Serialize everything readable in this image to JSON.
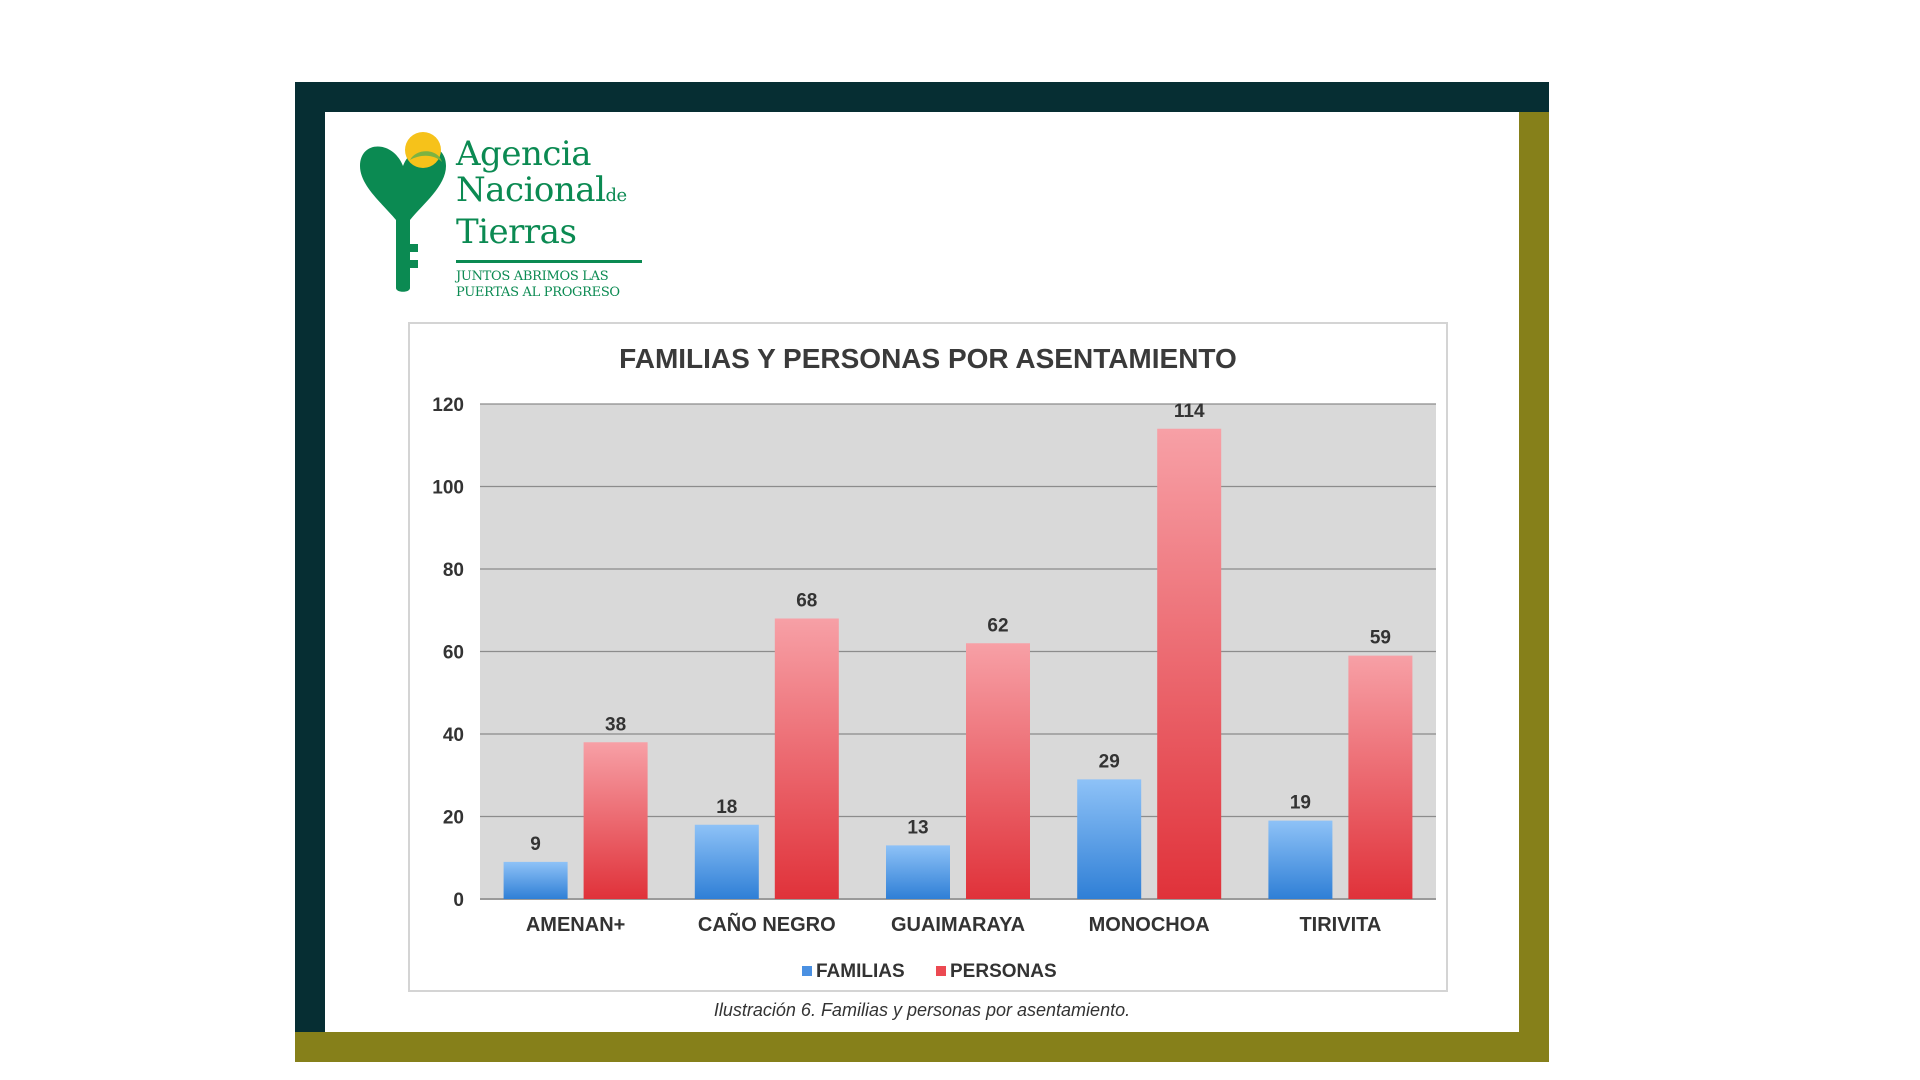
{
  "logo": {
    "line1": "Agencia",
    "line2": "Nacional",
    "line2_suffix": "de",
    "line3": "Tierras",
    "tagline1": "JUNTOS ABRIMOS LAS",
    "tagline2": "PUERTAS AL PROGRESO",
    "icon": "key-heart-icon",
    "brand_green": "#0b8a52",
    "brand_yellow": "#f6c21a"
  },
  "caption": "Ilustración 6. Familias y personas por asentamiento.",
  "colors": {
    "frame_dark": "#062e33",
    "frame_olive": "#86801a",
    "familias": "#4a90e2",
    "personas": "#ec4a52",
    "plot_bg": "#d9d9d9"
  },
  "chart_data": {
    "type": "bar",
    "title": "FAMILIAS Y PERSONAS POR ASENTAMIENTO",
    "categories": [
      "AMENAN+",
      "CAÑO NEGRO",
      "GUAIMARAYA",
      "MONOCHOA",
      "TIRIVITA"
    ],
    "series": [
      {
        "name": "FAMILIAS",
        "values": [
          9,
          18,
          13,
          29,
          19
        ]
      },
      {
        "name": "PERSONAS",
        "values": [
          38,
          68,
          62,
          114,
          59
        ]
      }
    ],
    "yticks": [
      "0",
      "20",
      "40",
      "60",
      "80",
      "100",
      "120"
    ],
    "ylim": [
      0,
      120
    ],
    "grid": true,
    "legend": "bottom"
  }
}
